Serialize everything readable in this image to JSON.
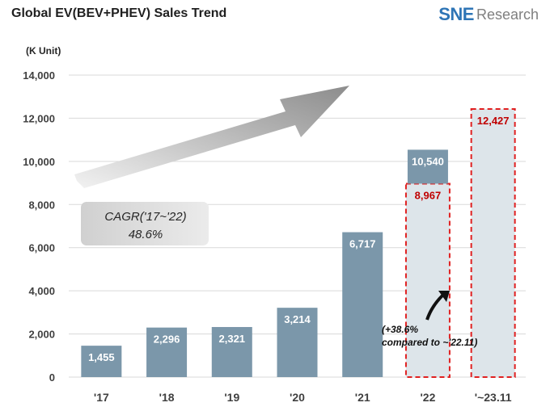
{
  "header": {
    "title": "Global EV(BEV+PHEV)  Sales Trend",
    "logo_brand": "SNE",
    "logo_rest": "Research"
  },
  "chart_data": {
    "type": "bar",
    "unit_label": "(K Unit)",
    "categories": [
      "'17",
      "'18",
      "'19",
      "'20",
      "'21",
      "'22",
      "'~23.11"
    ],
    "series": [
      {
        "values": [
          1455,
          2296,
          2321,
          3214,
          6717,
          10540,
          null
        ],
        "labels": [
          "1,455",
          "2,296",
          "2,321",
          "3,214",
          "6,717",
          "10,540",
          ""
        ]
      }
    ],
    "highlight_series": {
      "values": [
        null,
        null,
        null,
        null,
        null,
        8967,
        12427
      ],
      "labels": [
        "",
        "",
        "",
        "",
        "",
        "8,967",
        "12,427"
      ]
    },
    "ylim": [
      0,
      14000
    ],
    "yticks": [
      0,
      2000,
      4000,
      6000,
      8000,
      10000,
      12000,
      14000
    ],
    "ytick_labels": [
      "0",
      "2,000",
      "4,000",
      "6,000",
      "8,000",
      "10,000",
      "12,000",
      "14,000"
    ],
    "grid": true,
    "annotations": {
      "cagr_line1": "CAGR('17~'22)",
      "cagr_line2": "48.6%",
      "growth_line1": "(+38.6%",
      "growth_line2": "compared to ~'22.11)"
    },
    "colors": {
      "bar": "#7b97aa",
      "highlight_fill": "#dde5ea",
      "highlight_border": "#e02020",
      "highlight_label": "#c00000",
      "grid": "#d9d9d9",
      "axis_text": "#404040"
    }
  }
}
